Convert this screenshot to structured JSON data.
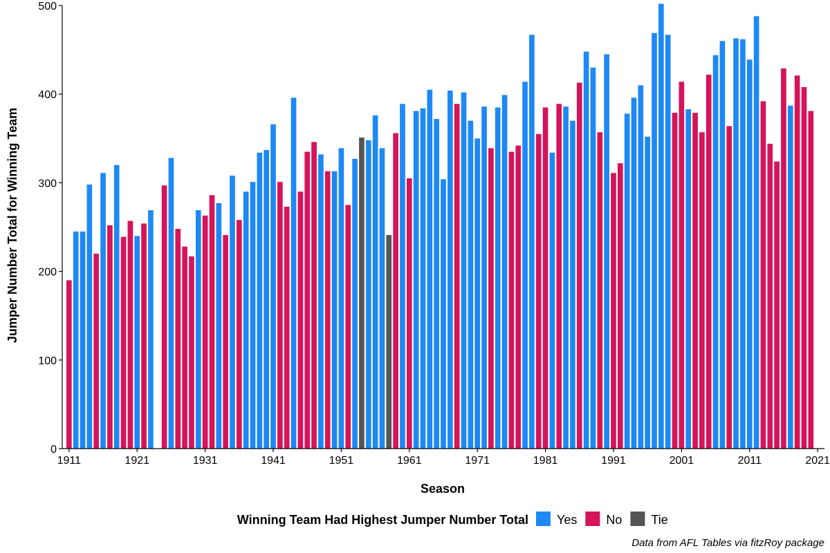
{
  "chart_data": {
    "type": "bar",
    "ylabel": "Jumper Number Total for Winning Team",
    "xlabel": "Season",
    "caption": "Data from AFL Tables via fitzRoy package",
    "ylim": [
      0,
      500
    ],
    "xlim": [
      1910,
      2022
    ],
    "yticks": [
      0,
      100,
      200,
      300,
      400,
      500
    ],
    "xticks": [
      1911,
      1921,
      1931,
      1941,
      1951,
      1961,
      1971,
      1981,
      1991,
      2001,
      2011,
      2021
    ],
    "grid": false,
    "legend": {
      "title": "Winning Team Had Highest Jumper Number Total",
      "position": "bottom",
      "entries": [
        {
          "key": "Yes",
          "label": "Yes",
          "color": "#1E88F5"
        },
        {
          "key": "No",
          "label": "No",
          "color": "#D5145A"
        },
        {
          "key": "Tie",
          "label": "Tie",
          "color": "#555555"
        }
      ]
    },
    "seasons": [
      1911,
      1912,
      1913,
      1914,
      1915,
      1916,
      1917,
      1918,
      1919,
      1920,
      1921,
      1922,
      1923,
      1925,
      1926,
      1927,
      1928,
      1929,
      1930,
      1931,
      1932,
      1933,
      1934,
      1935,
      1936,
      1937,
      1938,
      1939,
      1940,
      1941,
      1942,
      1943,
      1944,
      1945,
      1946,
      1947,
      1948,
      1949,
      1950,
      1951,
      1952,
      1953,
      1954,
      1955,
      1956,
      1957,
      1958,
      1959,
      1960,
      1961,
      1962,
      1963,
      1964,
      1965,
      1966,
      1967,
      1968,
      1969,
      1970,
      1971,
      1972,
      1973,
      1974,
      1975,
      1976,
      1977,
      1978,
      1979,
      1980,
      1981,
      1982,
      1983,
      1984,
      1985,
      1986,
      1987,
      1988,
      1989,
      1990,
      1991,
      1992,
      1993,
      1994,
      1995,
      1996,
      1997,
      1998,
      1999,
      2000,
      2001,
      2002,
      2003,
      2004,
      2005,
      2006,
      2007,
      2008,
      2009,
      2010,
      2011,
      2012,
      2013,
      2014,
      2015,
      2016,
      2017,
      2018,
      2019,
      2020
    ],
    "values": [
      190,
      245,
      245,
      298,
      220,
      311,
      252,
      320,
      239,
      257,
      240,
      254,
      269,
      297,
      328,
      248,
      228,
      217,
      269,
      263,
      286,
      277,
      241,
      308,
      258,
      290,
      301,
      334,
      337,
      366,
      301,
      273,
      396,
      290,
      335,
      346,
      332,
      313,
      313,
      339,
      275,
      327,
      351,
      348,
      376,
      339,
      241,
      356,
      389,
      305,
      381,
      384,
      405,
      372,
      304,
      404,
      389,
      402,
      370,
      350,
      386,
      339,
      385,
      399,
      335,
      342,
      414,
      467,
      355,
      385,
      334,
      389,
      386,
      370,
      413,
      448,
      430,
      357,
      445,
      311,
      322,
      378,
      396,
      410,
      352,
      469,
      502,
      467,
      379,
      414,
      383,
      379,
      357,
      422,
      444,
      460,
      364,
      463,
      462,
      439,
      488,
      392,
      344,
      324,
      429,
      387,
      421,
      408,
      381
    ],
    "outcomes": [
      "No",
      "Yes",
      "Yes",
      "Yes",
      "No",
      "Yes",
      "No",
      "Yes",
      "No",
      "No",
      "Yes",
      "No",
      "Yes",
      "No",
      "Yes",
      "No",
      "No",
      "No",
      "Yes",
      "No",
      "No",
      "Yes",
      "No",
      "Yes",
      "No",
      "Yes",
      "Yes",
      "Yes",
      "Yes",
      "Yes",
      "No",
      "No",
      "Yes",
      "No",
      "No",
      "No",
      "Yes",
      "No",
      "Yes",
      "Yes",
      "No",
      "Yes",
      "Tie",
      "Yes",
      "Yes",
      "Yes",
      "Tie",
      "No",
      "Yes",
      "No",
      "Yes",
      "Yes",
      "Yes",
      "Yes",
      "Yes",
      "Yes",
      "No",
      "Yes",
      "Yes",
      "Yes",
      "Yes",
      "No",
      "Yes",
      "Yes",
      "No",
      "No",
      "Yes",
      "Yes",
      "No",
      "No",
      "Yes",
      "No",
      "Yes",
      "Yes",
      "No",
      "Yes",
      "Yes",
      "No",
      "Yes",
      "No",
      "No",
      "Yes",
      "Yes",
      "Yes",
      "Yes",
      "Yes",
      "Yes",
      "Yes",
      "No",
      "No",
      "Yes",
      "No",
      "No",
      "No",
      "Yes",
      "Yes",
      "No",
      "Yes",
      "Yes",
      "Yes",
      "Yes",
      "No",
      "No",
      "No",
      "No",
      "Yes",
      "No",
      "No",
      "No"
    ]
  }
}
